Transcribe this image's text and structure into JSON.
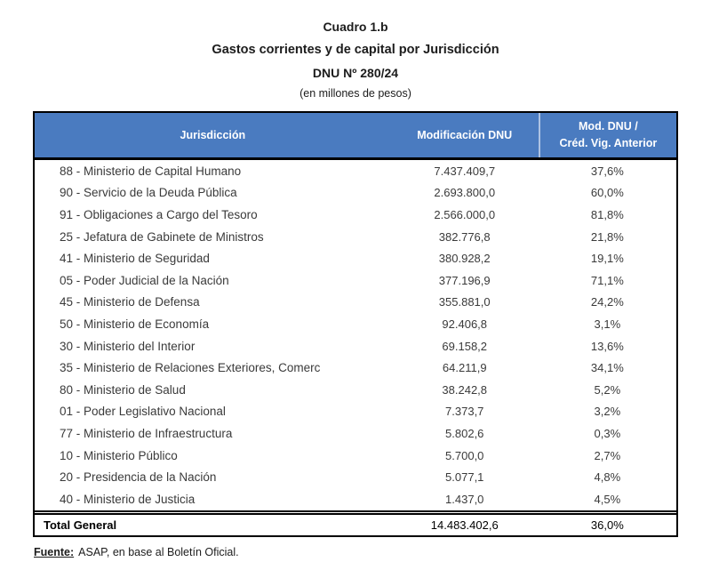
{
  "title": {
    "line1": "Cuadro 1.b",
    "line2": "Gastos corrientes y de capital por Jurisdicción",
    "line3": "DNU Nº 280/24",
    "line4": "(en millones de pesos)"
  },
  "table": {
    "header": {
      "col1": "Jurisdicción",
      "col2": "Modificación DNU",
      "col3_line1": "Mod. DNU /",
      "col3_line2": "Créd. Vig. Anterior"
    },
    "rows": [
      {
        "jurisdiccion": "88 - Ministerio de Capital Humano",
        "modificacion": "7.437.409,7",
        "ratio": "37,6%"
      },
      {
        "jurisdiccion": "90 - Servicio de la Deuda Pública",
        "modificacion": "2.693.800,0",
        "ratio": "60,0%"
      },
      {
        "jurisdiccion": "91 - Obligaciones a Cargo del Tesoro",
        "modificacion": "2.566.000,0",
        "ratio": "81,8%"
      },
      {
        "jurisdiccion": "25 - Jefatura de Gabinete de Ministros",
        "modificacion": "382.776,8",
        "ratio": "21,8%"
      },
      {
        "jurisdiccion": "41 - Ministerio de Seguridad",
        "modificacion": "380.928,2",
        "ratio": "19,1%"
      },
      {
        "jurisdiccion": "05 - Poder Judicial de la Nación",
        "modificacion": "377.196,9",
        "ratio": "71,1%"
      },
      {
        "jurisdiccion": "45 - Ministerio de Defensa",
        "modificacion": "355.881,0",
        "ratio": "24,2%"
      },
      {
        "jurisdiccion": "50 - Ministerio de Economía",
        "modificacion": "92.406,8",
        "ratio": "3,1%"
      },
      {
        "jurisdiccion": "30 - Ministerio del Interior",
        "modificacion": "69.158,2",
        "ratio": "13,6%"
      },
      {
        "jurisdiccion": "35 - Ministerio de Relaciones Exteriores, Comerc",
        "modificacion": "64.211,9",
        "ratio": "34,1%"
      },
      {
        "jurisdiccion": "80 - Ministerio de Salud",
        "modificacion": "38.242,8",
        "ratio": "5,2%"
      },
      {
        "jurisdiccion": "01 - Poder Legislativo Nacional",
        "modificacion": "7.373,7",
        "ratio": "3,2%"
      },
      {
        "jurisdiccion": "77 - Ministerio de Infraestructura",
        "modificacion": "5.802,6",
        "ratio": "0,3%"
      },
      {
        "jurisdiccion": "10 - Ministerio Público",
        "modificacion": "5.700,0",
        "ratio": "2,7%"
      },
      {
        "jurisdiccion": "20 - Presidencia de la Nación",
        "modificacion": "5.077,1",
        "ratio": "4,8%"
      },
      {
        "jurisdiccion": "40 - Ministerio de Justicia",
        "modificacion": "1.437,0",
        "ratio": "4,5%"
      }
    ],
    "total": {
      "label": "Total General",
      "modificacion": "14.483.402,6",
      "ratio": "36,0%"
    }
  },
  "footer": {
    "source_label": "Fuente:",
    "source_text": "ASAP, en base al Boletín Oficial."
  },
  "colors": {
    "header_bg": "#4a7bc0",
    "header_text": "#ffffff",
    "border": "#000000"
  }
}
